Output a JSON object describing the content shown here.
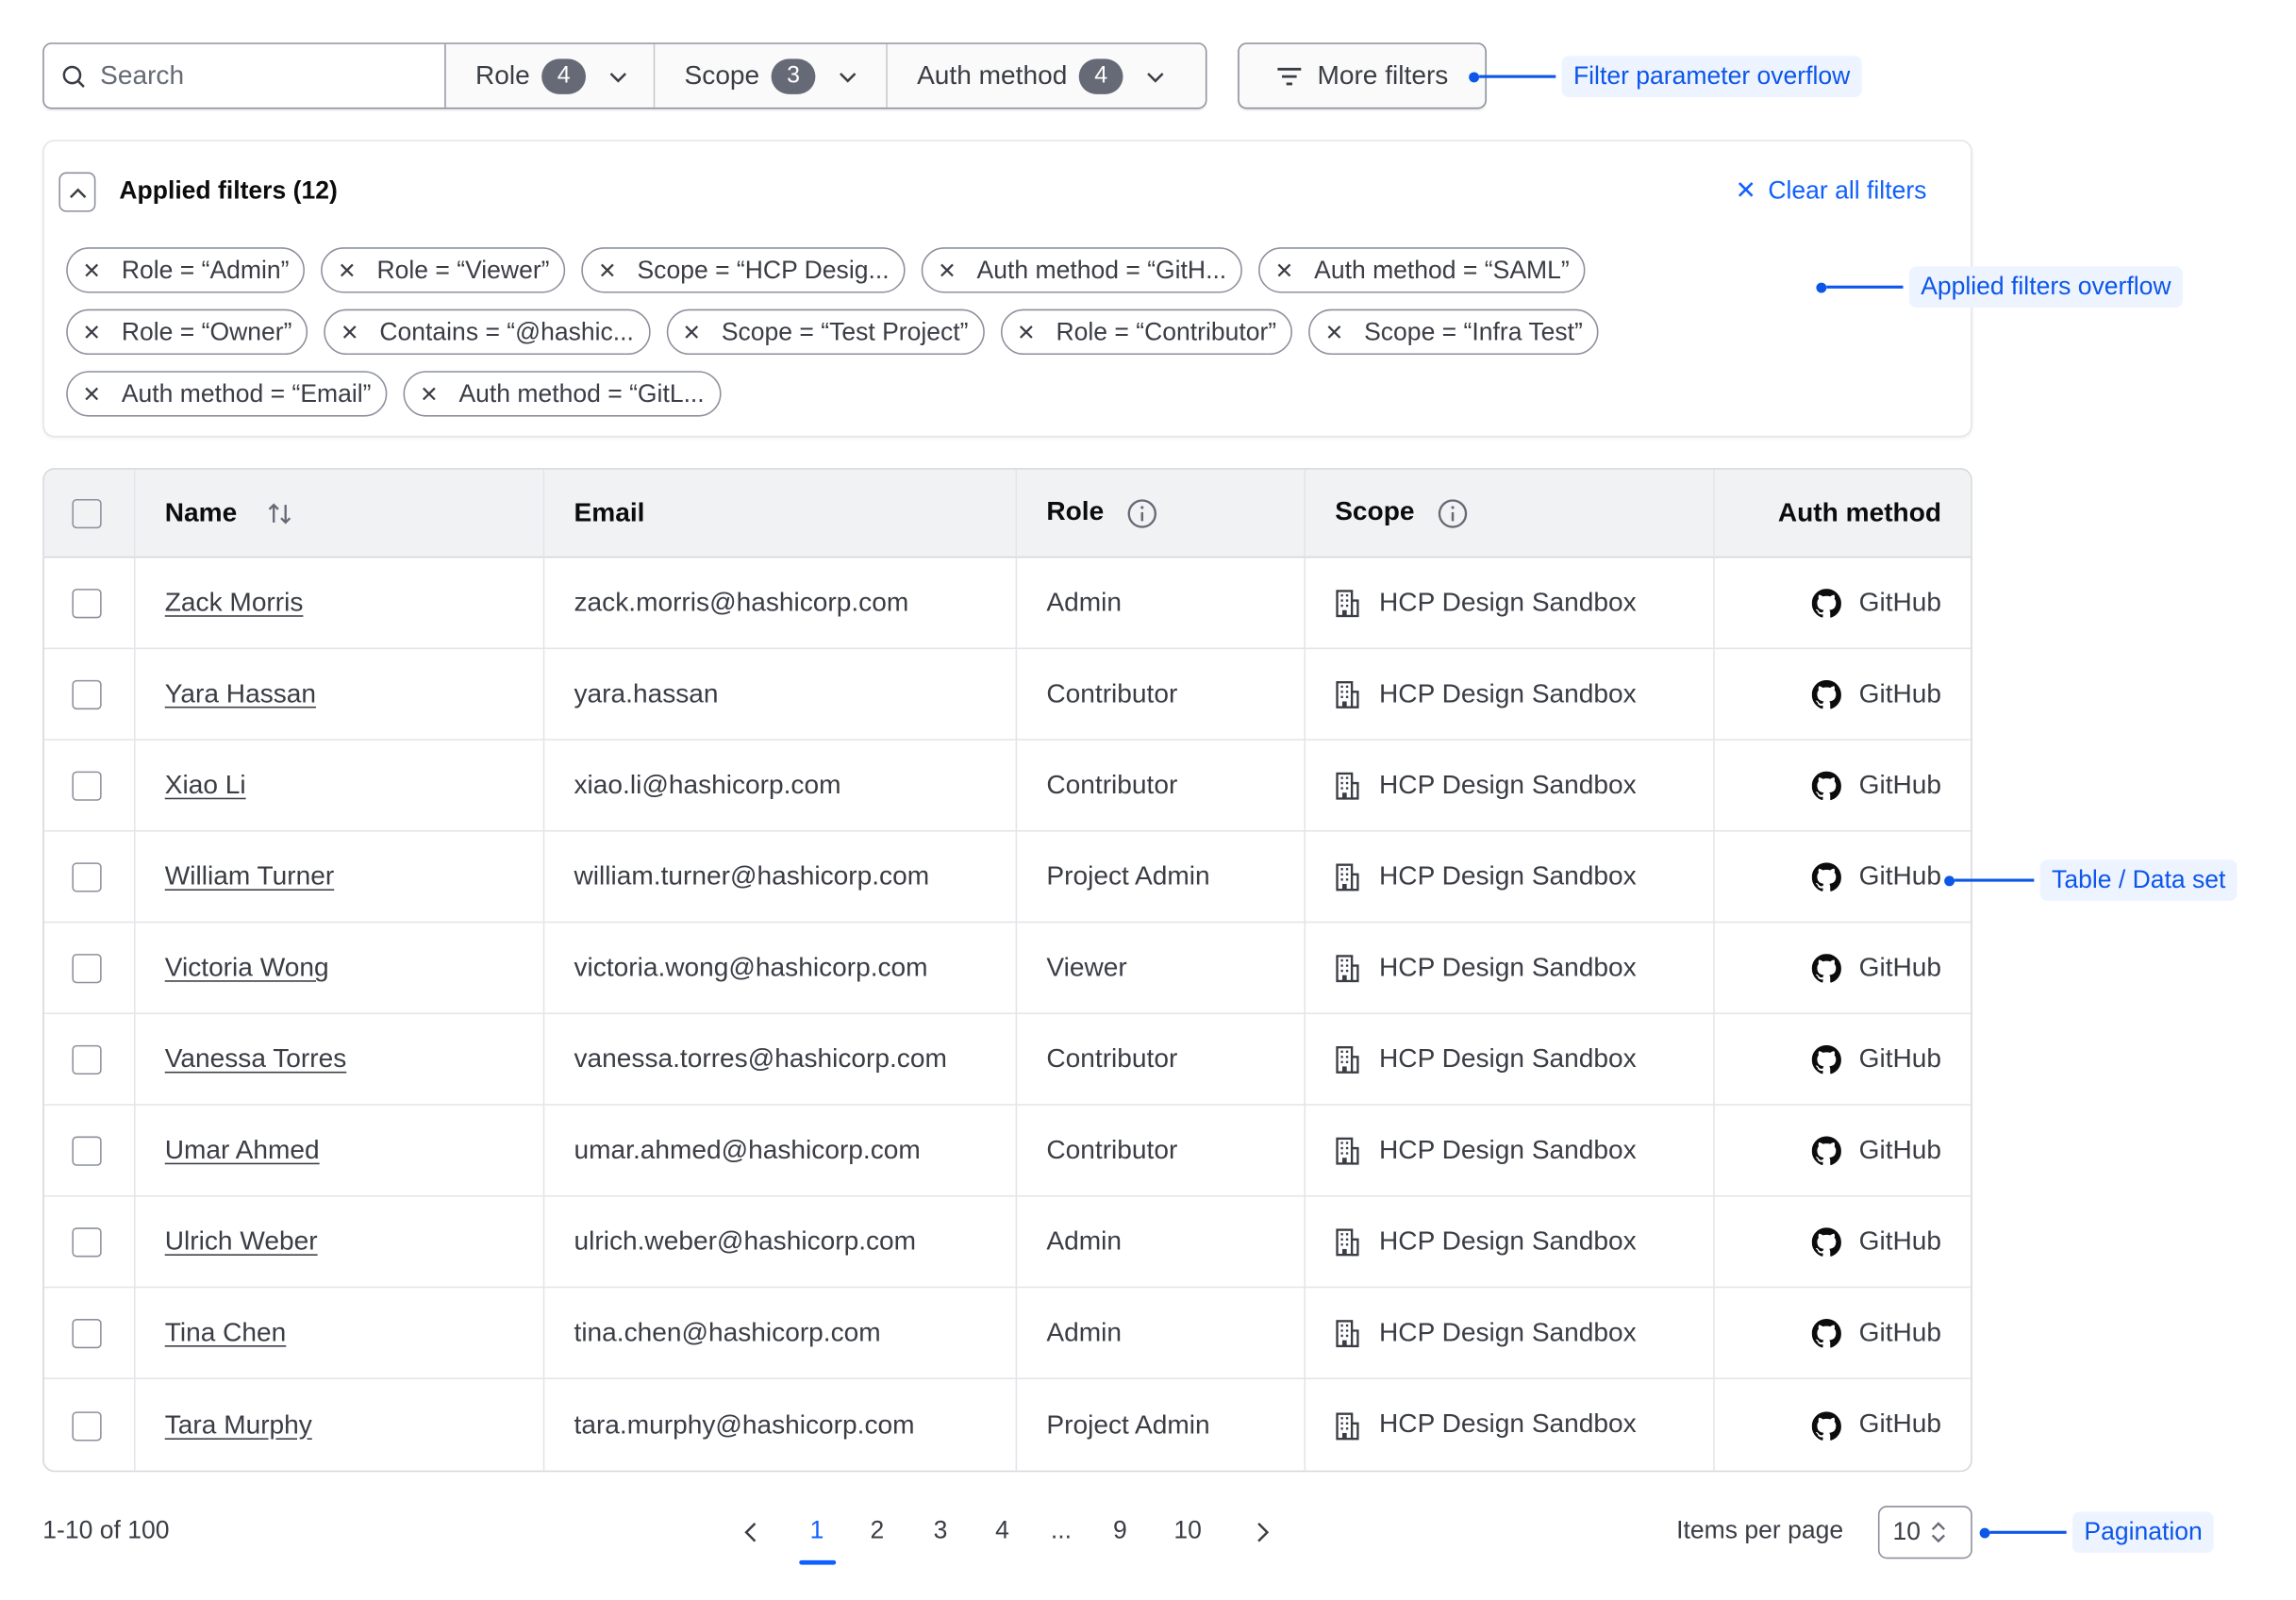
{
  "filter_bar": {
    "search_placeholder": "Search",
    "dropdowns": [
      {
        "label": "Role",
        "count": "4"
      },
      {
        "label": "Scope",
        "count": "3"
      },
      {
        "label": "Auth method",
        "count": "4"
      }
    ],
    "more_filters_label": "More filters"
  },
  "applied_filters": {
    "title": "Applied filters (12)",
    "clear_label": "Clear all filters",
    "chips": [
      "Role = “Admin”",
      "Role = “Viewer”",
      "Scope = “HCP Desig...",
      "Auth method = “GitH...",
      "Auth method = “SAML”",
      "Role = “Owner”",
      "Contains = “@hashic...",
      "Scope = “Test Project”",
      "Role = “Contributor”",
      "Scope = “Infra Test”",
      "Auth method = “Email”",
      "Auth method = “GitL..."
    ]
  },
  "annotations": {
    "filter_overflow": "Filter parameter overflow",
    "applied_overflow": "Applied filters overflow",
    "table": "Table / Data set",
    "pagination": "Pagination"
  },
  "table": {
    "headers": {
      "name": "Name",
      "email": "Email",
      "role": "Role",
      "scope": "Scope",
      "auth": "Auth method"
    },
    "rows": [
      {
        "name": "Zack Morris",
        "email": "zack.morris@hashicorp.com",
        "role": "Admin",
        "scope": "HCP Design Sandbox",
        "auth": "GitHub"
      },
      {
        "name": "Yara Hassan",
        "email": "yara.hassan",
        "role": "Contributor",
        "scope": "HCP Design Sandbox",
        "auth": "GitHub"
      },
      {
        "name": "Xiao Li",
        "email": "xiao.li@hashicorp.com",
        "role": "Contributor",
        "scope": "HCP Design Sandbox",
        "auth": "GitHub"
      },
      {
        "name": "William Turner",
        "email": "william.turner@hashicorp.com",
        "role": "Project Admin",
        "scope": "HCP Design Sandbox",
        "auth": "GitHub"
      },
      {
        "name": "Victoria Wong",
        "email": "victoria.wong@hashicorp.com",
        "role": "Viewer",
        "scope": "HCP Design Sandbox",
        "auth": "GitHub"
      },
      {
        "name": "Vanessa Torres",
        "email": "vanessa.torres@hashicorp.com",
        "role": "Contributor",
        "scope": "HCP Design Sandbox",
        "auth": "GitHub"
      },
      {
        "name": "Umar Ahmed",
        "email": "umar.ahmed@hashicorp.com",
        "role": "Contributor",
        "scope": "HCP Design Sandbox",
        "auth": "GitHub"
      },
      {
        "name": "Ulrich Weber",
        "email": "ulrich.weber@hashicorp.com",
        "role": "Admin",
        "scope": "HCP Design Sandbox",
        "auth": "GitHub"
      },
      {
        "name": "Tina Chen",
        "email": "tina.chen@hashicorp.com",
        "role": "Admin",
        "scope": "HCP Design Sandbox",
        "auth": "GitHub"
      },
      {
        "name": "Tara Murphy",
        "email": "tara.murphy@hashicorp.com",
        "role": "Project Admin",
        "scope": "HCP Design Sandbox",
        "auth": "GitHub"
      }
    ]
  },
  "pagination": {
    "summary": "1-10 of 100",
    "pages": [
      "1",
      "2",
      "3",
      "4",
      "...",
      "9",
      "10"
    ],
    "current": "1",
    "items_per_page_label": "Items per page",
    "items_per_page": "10"
  },
  "colors": {
    "accent": "#1060ff",
    "annotation": "#0c56e9",
    "badge": "#656a76"
  }
}
